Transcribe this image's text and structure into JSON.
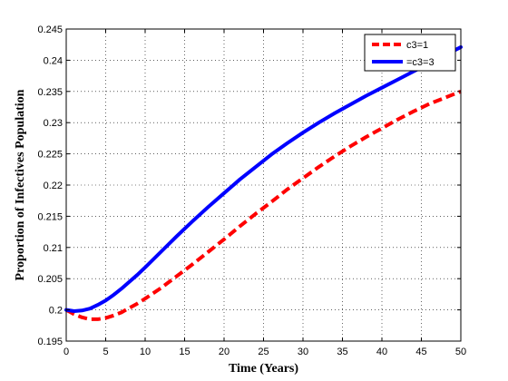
{
  "chart_data": {
    "type": "line",
    "xlabel": "Time (Years)",
    "ylabel": "Proportion of Infectives Population",
    "xlim": [
      0,
      50
    ],
    "ylim": [
      0.195,
      0.245
    ],
    "xticks": [
      0,
      5,
      10,
      15,
      20,
      25,
      30,
      35,
      40,
      45,
      50
    ],
    "xtick_labels": [
      "0",
      "5",
      "10",
      "15",
      "20",
      "25",
      "30",
      "35",
      "40",
      "45",
      "50"
    ],
    "yticks": [
      0.195,
      0.2,
      0.205,
      0.21,
      0.215,
      0.22,
      0.225,
      0.23,
      0.235,
      0.24,
      0.245
    ],
    "ytick_labels": [
      "0.195",
      "0.2",
      "0.205",
      "0.21",
      "0.215",
      "0.22",
      "0.225",
      "0.23",
      "0.235",
      "0.24",
      "0.245"
    ],
    "grid": true,
    "legend_position": "top-right",
    "series": [
      {
        "name": "c3=1",
        "color": "#ff0000",
        "style": "dashed",
        "x": [
          0,
          1,
          2,
          3,
          4,
          5,
          6,
          7,
          8,
          9,
          10,
          12,
          14,
          16,
          18,
          20,
          22,
          24,
          26,
          28,
          30,
          32,
          34,
          36,
          38,
          40,
          42,
          44,
          46,
          48,
          50
        ],
        "y": [
          0.2,
          0.1993,
          0.1988,
          0.1985,
          0.1985,
          0.1987,
          0.1991,
          0.1996,
          0.2003,
          0.201,
          0.2018,
          0.2035,
          0.2054,
          0.2073,
          0.2093,
          0.2113,
          0.2134,
          0.2154,
          0.2173,
          0.2193,
          0.2211,
          0.2229,
          0.2246,
          0.2262,
          0.2277,
          0.2291,
          0.2305,
          0.2318,
          0.233,
          0.234,
          0.235
        ]
      },
      {
        "name": "=c3=3",
        "color": "#0000ff",
        "style": "solid",
        "x": [
          0,
          1,
          2,
          3,
          4,
          5,
          6,
          7,
          8,
          9,
          10,
          12,
          14,
          16,
          18,
          20,
          22,
          24,
          26,
          28,
          30,
          32,
          34,
          36,
          38,
          40,
          42,
          44,
          46,
          48,
          50
        ],
        "y": [
          0.2,
          0.1998,
          0.1999,
          0.2002,
          0.2008,
          0.2015,
          0.2024,
          0.2034,
          0.2045,
          0.2056,
          0.2068,
          0.2093,
          0.2118,
          0.2142,
          0.2165,
          0.2187,
          0.2209,
          0.2229,
          0.2249,
          0.2267,
          0.2284,
          0.23,
          0.2315,
          0.2329,
          0.2343,
          0.2356,
          0.2369,
          0.2382,
          0.2395,
          0.2408,
          0.2421
        ]
      }
    ]
  }
}
